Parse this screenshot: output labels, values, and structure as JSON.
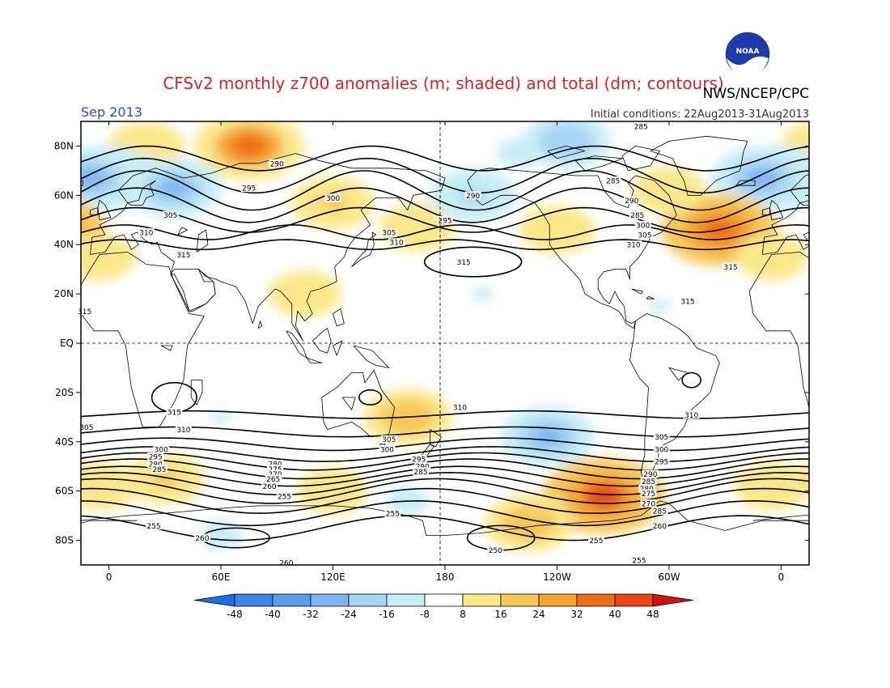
{
  "title": "CFSv2 monthly z700 anomalies (m; shaded) and total (dm; contours)",
  "agency": "NWS/NCEP/CPC",
  "logo_text": "NOAA",
  "month_label": "Sep 2013",
  "init_conditions": "Initial conditions: 22Aug2013-31Aug2013",
  "chart_data": {
    "type": "heatmap",
    "title": "CFSv2 monthly z700 anomalies (m; shaded) and total (dm; contours)",
    "x_ticks": [
      "0",
      "60E",
      "120E",
      "180",
      "120W",
      "60W",
      "0"
    ],
    "x_tick_lons": [
      0,
      60,
      120,
      180,
      240,
      300,
      360
    ],
    "y_ticks": [
      "80N",
      "60N",
      "40N",
      "20N",
      "EQ",
      "20S",
      "40S",
      "60S",
      "80S"
    ],
    "y_tick_lats": [
      80,
      60,
      40,
      20,
      0,
      -20,
      -40,
      -60,
      -80
    ],
    "xlim": [
      -15,
      375
    ],
    "ylim": [
      -90,
      90
    ],
    "shading_levels": [
      -48,
      -40,
      -32,
      -24,
      -16,
      -8,
      8,
      16,
      24,
      32,
      40,
      48
    ],
    "shading_labels": [
      "-48",
      "-40",
      "-32",
      "-24",
      "-16",
      "-8",
      "8",
      "16",
      "24",
      "32",
      "40",
      "48"
    ],
    "shading_colors": [
      "#1e6ee6",
      "#3c84e8",
      "#5a9cec",
      "#7fb6f2",
      "#a6d6f4",
      "#c8eef6",
      "#ffffff",
      "#fbe88c",
      "#f8c85a",
      "#f4a432",
      "#ee6e18",
      "#e6461a",
      "#cc1414"
    ],
    "anomaly_centers": [
      {
        "lon": 75,
        "lat": 80,
        "value": 34
      },
      {
        "lon": 20,
        "lat": 80,
        "value": 14
      },
      {
        "lon": 0,
        "lat": 67,
        "value": -30
      },
      {
        "lon": 35,
        "lat": 63,
        "value": -26
      },
      {
        "lon": 120,
        "lat": 57,
        "value": 18
      },
      {
        "lon": 165,
        "lat": 47,
        "value": 14
      },
      {
        "lon": 195,
        "lat": 60,
        "value": -20
      },
      {
        "lon": 220,
        "lat": 77,
        "value": -14
      },
      {
        "lon": 245,
        "lat": 82,
        "value": -22
      },
      {
        "lon": 350,
        "lat": 67,
        "value": -30
      },
      {
        "lon": 240,
        "lat": 46,
        "value": 14
      },
      {
        "lon": 327,
        "lat": 46,
        "value": 38
      },
      {
        "lon": 300,
        "lat": 62,
        "value": 12
      },
      {
        "lon": 160,
        "lat": -30,
        "value": 22
      },
      {
        "lon": 60,
        "lat": -30,
        "value": -10
      },
      {
        "lon": 235,
        "lat": -38,
        "value": -26
      },
      {
        "lon": 265,
        "lat": -62,
        "value": 42
      },
      {
        "lon": 225,
        "lat": -73,
        "value": 22
      },
      {
        "lon": 30,
        "lat": -55,
        "value": 16
      },
      {
        "lon": 120,
        "lat": -60,
        "value": 12
      },
      {
        "lon": 160,
        "lat": -64,
        "value": -12
      },
      {
        "lon": 355,
        "lat": -58,
        "value": 14
      },
      {
        "lon": 105,
        "lat": 20,
        "value": 12
      },
      {
        "lon": 200,
        "lat": 20,
        "value": -10
      },
      {
        "lon": 295,
        "lat": 15,
        "value": -10
      },
      {
        "lon": 355,
        "lat": 35,
        "value": 12
      },
      {
        "lon": 60,
        "lat": -78,
        "value": -12
      }
    ],
    "contour_labels": [
      {
        "lon": 285,
        "lat": 88,
        "text": "285"
      },
      {
        "lon": 90,
        "lat": 73,
        "text": "290"
      },
      {
        "lon": 195,
        "lat": 60,
        "text": "290"
      },
      {
        "lon": 270,
        "lat": 66,
        "text": "285"
      },
      {
        "lon": 75,
        "lat": 63,
        "text": "295"
      },
      {
        "lon": 120,
        "lat": 59,
        "text": "300"
      },
      {
        "lon": 280,
        "lat": 58,
        "text": "290"
      },
      {
        "lon": 180,
        "lat": 50,
        "text": "295"
      },
      {
        "lon": 283,
        "lat": 52,
        "text": "285"
      },
      {
        "lon": 33,
        "lat": 52,
        "text": "305"
      },
      {
        "lon": 286,
        "lat": 48,
        "text": "300"
      },
      {
        "lon": 20,
        "lat": 45,
        "text": "310"
      },
      {
        "lon": 150,
        "lat": 45,
        "text": "305"
      },
      {
        "lon": 287,
        "lat": 44,
        "text": "305"
      },
      {
        "lon": 154,
        "lat": 41,
        "text": "310"
      },
      {
        "lon": 281,
        "lat": 40,
        "text": "310"
      },
      {
        "lon": 40,
        "lat": 36,
        "text": "315"
      },
      {
        "lon": 190,
        "lat": 33,
        "text": "315"
      },
      {
        "lon": 333,
        "lat": 31,
        "text": "315"
      },
      {
        "lon": 310,
        "lat": 17,
        "text": "315"
      },
      {
        "lon": -13,
        "lat": 13,
        "text": "315"
      },
      {
        "lon": 35,
        "lat": -28,
        "text": "315"
      },
      {
        "lon": 188,
        "lat": -26,
        "text": "310"
      },
      {
        "lon": 312,
        "lat": -29,
        "text": "310"
      },
      {
        "lon": 40,
        "lat": -35,
        "text": "310"
      },
      {
        "lon": -12,
        "lat": -34,
        "text": "305"
      },
      {
        "lon": 150,
        "lat": -39,
        "text": "305"
      },
      {
        "lon": 296,
        "lat": -38,
        "text": "305"
      },
      {
        "lon": 28,
        "lat": -43,
        "text": "300"
      },
      {
        "lon": 149,
        "lat": -43,
        "text": "300"
      },
      {
        "lon": 296,
        "lat": -43,
        "text": "300"
      },
      {
        "lon": 25,
        "lat": -46,
        "text": "295"
      },
      {
        "lon": 166,
        "lat": -47,
        "text": "295"
      },
      {
        "lon": 296,
        "lat": -48,
        "text": "295"
      },
      {
        "lon": 25,
        "lat": -49,
        "text": "290"
      },
      {
        "lon": 89,
        "lat": -49,
        "text": "280"
      },
      {
        "lon": 168,
        "lat": -50,
        "text": "290"
      },
      {
        "lon": 27,
        "lat": -51,
        "text": "285"
      },
      {
        "lon": 89,
        "lat": -51,
        "text": "275"
      },
      {
        "lon": 167,
        "lat": -52,
        "text": "285"
      },
      {
        "lon": 89,
        "lat": -53,
        "text": "270"
      },
      {
        "lon": 290,
        "lat": -53,
        "text": "290"
      },
      {
        "lon": 88,
        "lat": -55,
        "text": "265"
      },
      {
        "lon": 289,
        "lat": -56,
        "text": "285"
      },
      {
        "lon": 86,
        "lat": -58,
        "text": "260"
      },
      {
        "lon": 288,
        "lat": -59,
        "text": "280"
      },
      {
        "lon": 94,
        "lat": -62,
        "text": "255"
      },
      {
        "lon": 289,
        "lat": -61,
        "text": "275"
      },
      {
        "lon": 289,
        "lat": -65,
        "text": "270"
      },
      {
        "lon": 295,
        "lat": -68,
        "text": "285"
      },
      {
        "lon": 152,
        "lat": -69,
        "text": "255"
      },
      {
        "lon": 295,
        "lat": -74,
        "text": "260"
      },
      {
        "lon": 24,
        "lat": -74,
        "text": "255"
      },
      {
        "lon": 50,
        "lat": -79,
        "text": "260"
      },
      {
        "lon": 261,
        "lat": -80,
        "text": "255"
      },
      {
        "lon": 207,
        "lat": -84,
        "text": "250"
      },
      {
        "lon": 284,
        "lat": -88,
        "text": "255"
      },
      {
        "lon": 95,
        "lat": -89,
        "text": "260"
      }
    ]
  }
}
